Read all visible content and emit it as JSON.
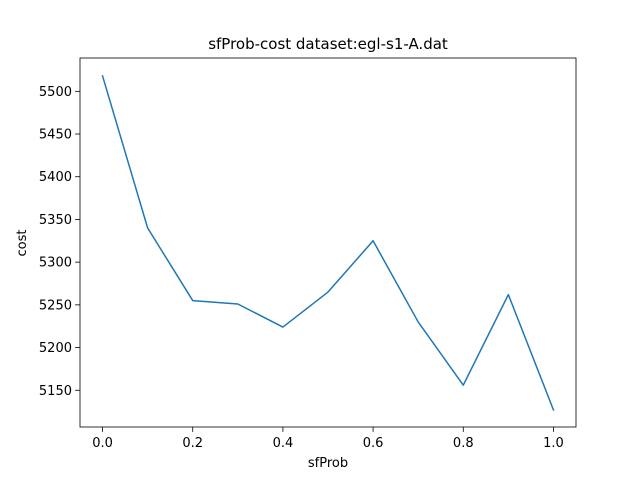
{
  "chart_data": {
    "type": "line",
    "title": "sfProb-cost  dataset:egl-s1-A.dat",
    "xlabel": "sfProb",
    "ylabel": "cost",
    "x": [
      0.0,
      0.1,
      0.2,
      0.3,
      0.4,
      0.5,
      0.6,
      0.7,
      0.8,
      0.9,
      1.0
    ],
    "series": [
      {
        "values": [
          5518,
          5340,
          5255,
          5251,
          5224,
          5265,
          5325,
          5230,
          5156,
          5262,
          5127
        ],
        "color": "#1f77b4"
      }
    ],
    "xlim": [
      -0.05,
      1.05
    ],
    "ylim": [
      5107,
      5539
    ],
    "xticks": [
      0.0,
      0.2,
      0.4,
      0.6,
      0.8,
      1.0
    ],
    "xtick_labels": [
      "0.0",
      "0.2",
      "0.4",
      "0.6",
      "0.8",
      "1.0"
    ],
    "yticks": [
      5150,
      5200,
      5250,
      5300,
      5350,
      5400,
      5450,
      5500
    ],
    "ytick_labels": [
      "5150",
      "5200",
      "5250",
      "5300",
      "5350",
      "5400",
      "5450",
      "5500"
    ],
    "grid": false,
    "legend": "none"
  }
}
